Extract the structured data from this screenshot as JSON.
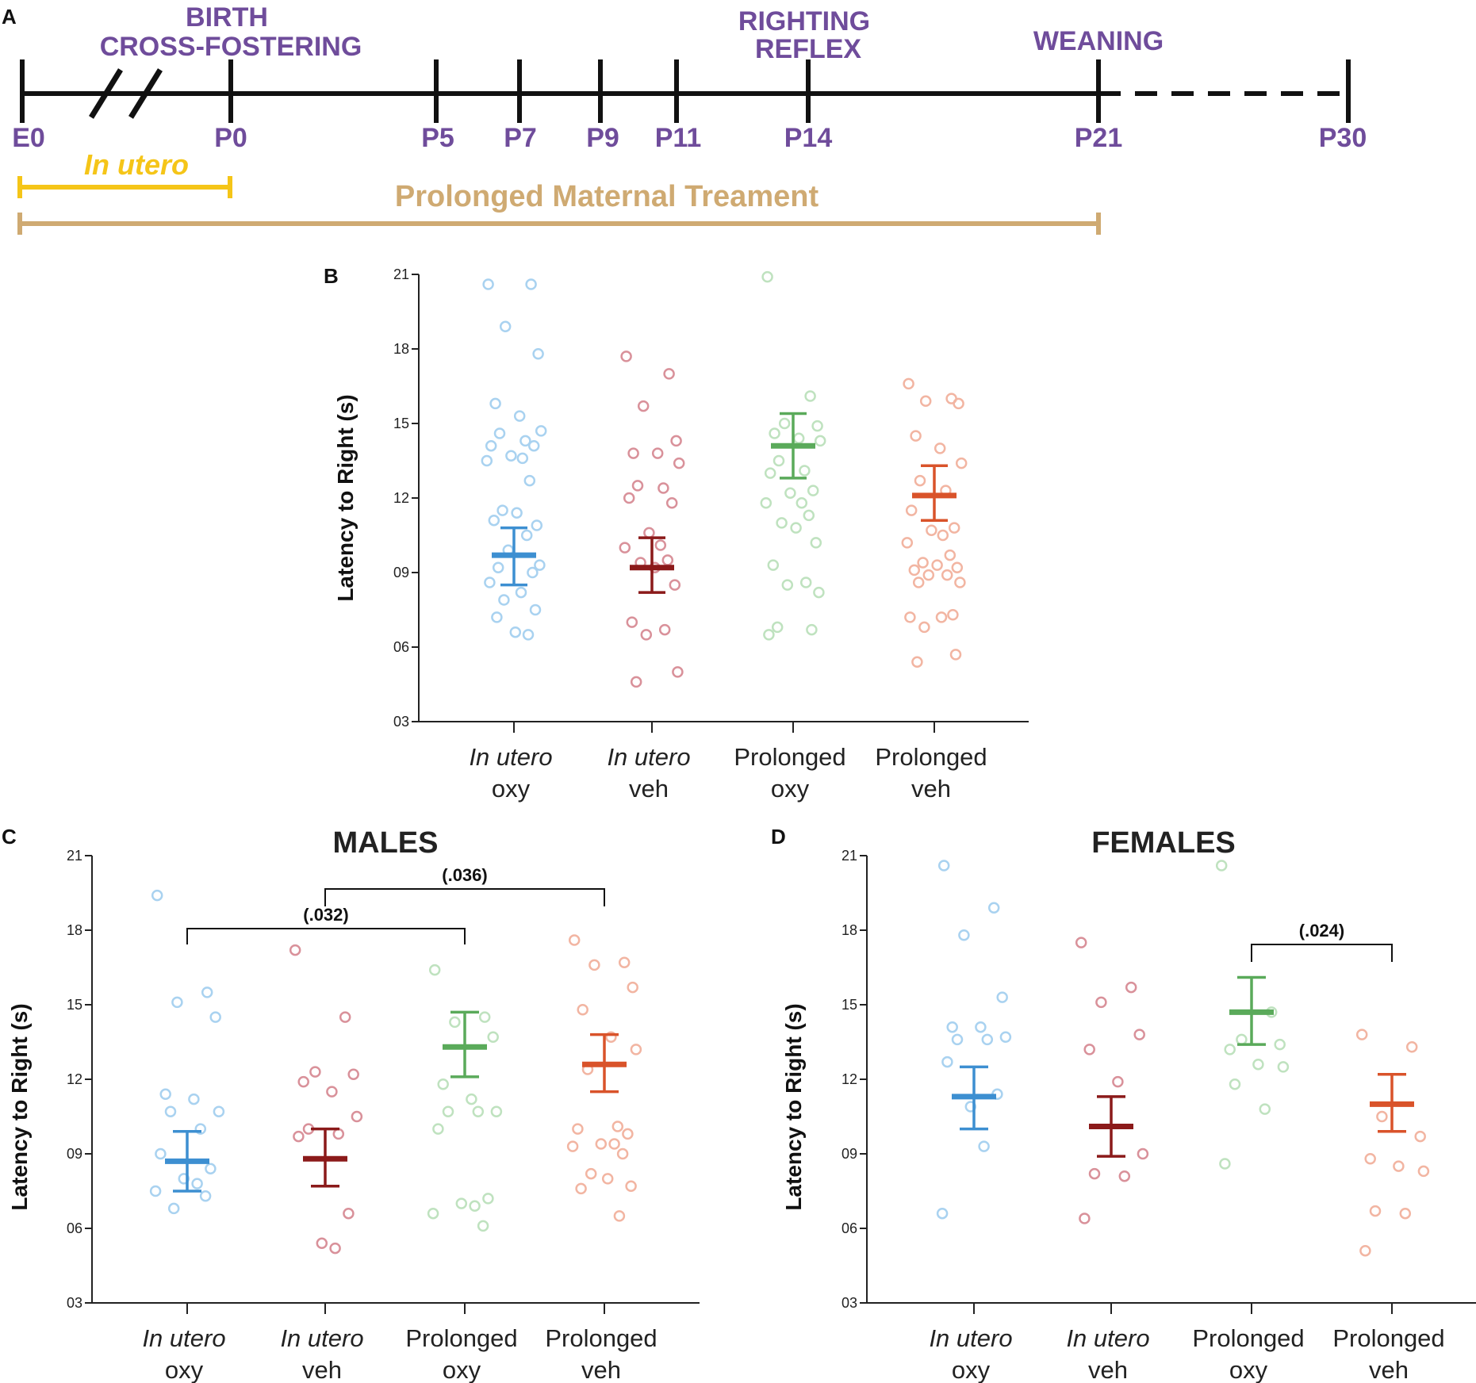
{
  "timeline": {
    "letter": "A",
    "events": [
      "BIRTH",
      "CROSS-FOSTERING",
      "RIGHTING",
      "REFLEX",
      "WEANING"
    ],
    "ticks": [
      "E0",
      "P0",
      "P5",
      "P7",
      "P9",
      "P11",
      "P14",
      "P21",
      "P30"
    ],
    "in_utero_label": "In utero",
    "prolonged_label": "Prolonged Maternal Treament",
    "colors": {
      "line": "#111111",
      "events": "#6f4c9b",
      "in_utero": "#f5c518",
      "prolonged": "#cfaa72"
    }
  },
  "colors": {
    "in_utero_oxy": "#3d8fd1",
    "in_utero_veh": "#8b1a1a",
    "prolonged_oxy": "#5aaa5a",
    "prolonged_veh": "#d9532a",
    "in_utero_oxy_pts": "#a9d2f0",
    "in_utero_veh_pts": "#d9919a",
    "prolonged_oxy_pts": "#bfe2bf",
    "prolonged_veh_pts": "#f2b5a2"
  },
  "chart_data": [
    {
      "panel": "B",
      "type": "scatter",
      "title": "",
      "ylabel": "Latency to Right (s)",
      "ylim": [
        3,
        21
      ],
      "yticks": [
        "03",
        "06",
        "09",
        "12",
        "15",
        "18",
        "21"
      ],
      "categories": [
        {
          "line1": "In utero",
          "line2": "oxy",
          "italic": true
        },
        {
          "line1": "In utero",
          "line2": "veh",
          "italic": true
        },
        {
          "line1": "Prolonged",
          "line2": "oxy",
          "italic": false
        },
        {
          "line1": "Prolonged",
          "line2": "veh",
          "italic": false
        }
      ],
      "series": [
        {
          "name": "In utero oxy",
          "mean": 9.7,
          "sem_low": 8.5,
          "sem_high": 10.8,
          "points": [
            20.6,
            20.6,
            18.9,
            17.8,
            15.8,
            15.3,
            14.7,
            14.6,
            14.3,
            14.1,
            14.1,
            13.7,
            13.6,
            13.5,
            12.7,
            11.5,
            11.4,
            10.9,
            11.1,
            10.5,
            9.9,
            9.3,
            9.2,
            9.0,
            8.6,
            8.2,
            7.9,
            7.5,
            7.2,
            6.6,
            6.5
          ]
        },
        {
          "name": "In utero veh",
          "mean": 9.2,
          "sem_low": 8.2,
          "sem_high": 10.4,
          "points": [
            17.7,
            17.0,
            15.7,
            14.3,
            13.8,
            13.8,
            13.4,
            12.5,
            12.4,
            12.0,
            11.8,
            10.6,
            10.1,
            10.0,
            9.5,
            9.4,
            9.2,
            8.5,
            7.0,
            6.7,
            6.5,
            5.0,
            4.6
          ]
        },
        {
          "name": "Prolonged oxy",
          "mean": 14.1,
          "sem_low": 12.8,
          "sem_high": 15.4,
          "points": [
            20.9,
            16.1,
            15.0,
            14.9,
            14.6,
            14.4,
            14.3,
            13.5,
            13.1,
            13.0,
            12.3,
            12.2,
            11.8,
            11.8,
            11.3,
            11.0,
            10.8,
            10.2,
            9.3,
            8.6,
            8.5,
            8.2,
            6.8,
            6.7,
            6.5
          ]
        },
        {
          "name": "Prolonged veh",
          "mean": 12.1,
          "sem_low": 11.1,
          "sem_high": 13.3,
          "points": [
            16.6,
            16.0,
            15.9,
            15.8,
            14.5,
            14.0,
            13.4,
            12.7,
            12.3,
            11.5,
            10.8,
            10.7,
            10.5,
            10.2,
            9.7,
            9.4,
            9.3,
            9.2,
            9.1,
            8.9,
            8.9,
            8.6,
            8.6,
            7.3,
            7.2,
            7.2,
            6.8,
            5.7,
            5.4
          ]
        }
      ],
      "brackets": []
    },
    {
      "panel": "C",
      "type": "scatter",
      "title": "MALES",
      "ylabel": "Latency to Right (s)",
      "ylim": [
        3,
        21
      ],
      "yticks": [
        "03",
        "06",
        "09",
        "12",
        "15",
        "18",
        "21"
      ],
      "categories": [
        {
          "line1": "In utero",
          "line2": "oxy",
          "italic": true
        },
        {
          "line1": "In utero",
          "line2": "veh",
          "italic": true
        },
        {
          "line1": "Prolonged",
          "line2": "oxy",
          "italic": false
        },
        {
          "line1": "Prolonged",
          "line2": "veh",
          "italic": false
        }
      ],
      "series": [
        {
          "name": "In utero oxy",
          "mean": 8.7,
          "sem_low": 7.5,
          "sem_high": 9.9,
          "points": [
            19.4,
            15.5,
            15.1,
            14.5,
            11.4,
            11.2,
            10.7,
            10.7,
            10.0,
            9.0,
            8.4,
            8.0,
            7.8,
            7.5,
            7.3,
            6.8
          ]
        },
        {
          "name": "In utero veh",
          "mean": 8.8,
          "sem_low": 7.7,
          "sem_high": 10.0,
          "points": [
            17.2,
            14.5,
            12.3,
            12.2,
            11.9,
            11.5,
            10.5,
            10.0,
            9.8,
            9.7,
            6.6,
            5.4,
            5.2
          ]
        },
        {
          "name": "Prolonged oxy",
          "mean": 13.3,
          "sem_low": 12.1,
          "sem_high": 14.7,
          "points": [
            16.4,
            14.5,
            14.3,
            13.7,
            11.8,
            11.2,
            10.7,
            10.7,
            10.7,
            10.0,
            7.2,
            7.0,
            6.9,
            6.6,
            6.1
          ]
        },
        {
          "name": "Prolonged veh",
          "mean": 12.6,
          "sem_low": 11.5,
          "sem_high": 13.8,
          "points": [
            17.6,
            16.7,
            16.6,
            15.7,
            14.8,
            13.7,
            13.2,
            12.4,
            10.1,
            10.0,
            9.8,
            9.4,
            9.4,
            9.3,
            9.0,
            8.2,
            8.0,
            7.7,
            7.6,
            6.5
          ]
        }
      ],
      "brackets": [
        {
          "from": 0,
          "to": 2,
          "label": "(.032)"
        },
        {
          "from": 1,
          "to": 3,
          "label": "(.036)"
        }
      ]
    },
    {
      "panel": "D",
      "type": "scatter",
      "title": "FEMALES",
      "ylabel": "Latency to Right (s)",
      "ylim": [
        3,
        21
      ],
      "yticks": [
        "03",
        "06",
        "09",
        "12",
        "15",
        "18",
        "21"
      ],
      "categories": [
        {
          "line1": "In utero",
          "line2": "oxy",
          "italic": true
        },
        {
          "line1": "In utero",
          "line2": "veh",
          "italic": true
        },
        {
          "line1": "Prolonged",
          "line2": "oxy",
          "italic": false
        },
        {
          "line1": "Prolonged",
          "line2": "veh",
          "italic": false
        }
      ],
      "series": [
        {
          "name": "In utero oxy",
          "mean": 11.3,
          "sem_low": 10.0,
          "sem_high": 12.5,
          "points": [
            20.6,
            18.9,
            17.8,
            15.3,
            14.1,
            14.1,
            13.7,
            13.6,
            13.6,
            12.7,
            11.4,
            10.9,
            9.3,
            6.6
          ]
        },
        {
          "name": "In utero veh",
          "mean": 10.1,
          "sem_low": 8.9,
          "sem_high": 11.3,
          "points": [
            17.5,
            15.7,
            15.1,
            13.8,
            13.2,
            11.9,
            9.0,
            8.2,
            8.1,
            6.4
          ]
        },
        {
          "name": "Prolonged oxy",
          "mean": 14.7,
          "sem_low": 13.4,
          "sem_high": 16.1,
          "points": [
            20.6,
            14.7,
            13.6,
            13.4,
            13.2,
            12.6,
            12.5,
            11.8,
            10.8,
            8.6
          ]
        },
        {
          "name": "Prolonged veh",
          "mean": 11.0,
          "sem_low": 9.9,
          "sem_high": 12.2,
          "points": [
            13.8,
            13.3,
            10.5,
            9.7,
            8.8,
            8.5,
            8.3,
            6.7,
            6.6,
            5.1
          ]
        }
      ],
      "brackets": [
        {
          "from": 2,
          "to": 3,
          "label": "(.024)"
        }
      ]
    }
  ]
}
